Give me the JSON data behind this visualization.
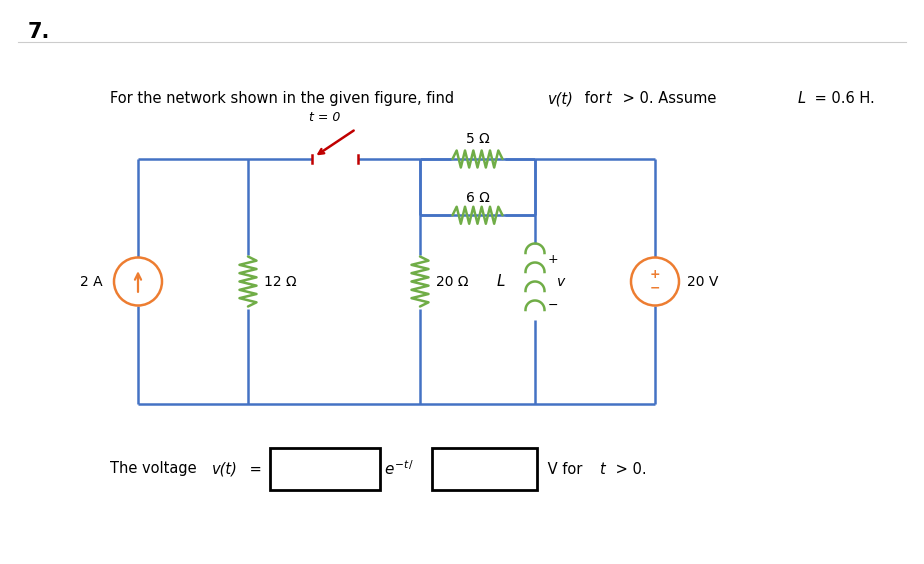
{
  "title_number": "7.",
  "bg_color": "#ffffff",
  "wire_color": "#4472C4",
  "resistor_color": "#70AD47",
  "switch_color": "#C00000",
  "source_color": "#ED7D31",
  "text_color": "#000000",
  "five_ohm_label": "5 Ω",
  "six_ohm_label": "6 Ω",
  "twelve_ohm_label": "12 Ω",
  "twenty_ohm_label": "20 Ω",
  "current_source_label": "2 A",
  "voltage_source_label": "20 V",
  "inductor_label": "L",
  "switch_label": "t = 0",
  "v_label": "v",
  "plus_label": "+",
  "minus_label": "−",
  "problem_line": "For the network shown in the given figure, find v(t) for t > 0. Assume L = 0.6 H."
}
